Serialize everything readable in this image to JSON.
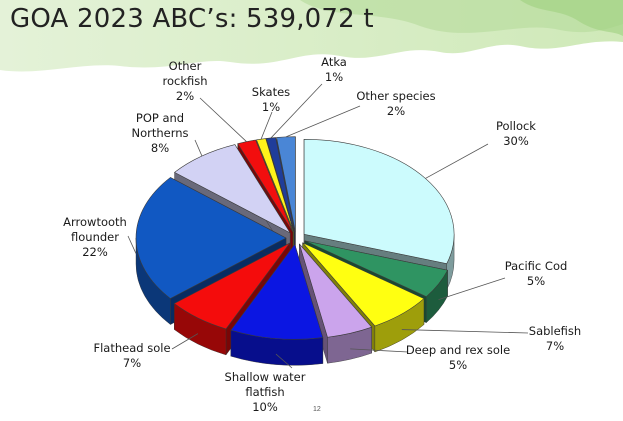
{
  "slide": {
    "title": "GOA 2023 ABC’s: 539,072 t",
    "page_number": "12"
  },
  "chart_data": {
    "type": "pie",
    "title": "GOA 2023 ABC’s: 539,072 t",
    "slices": [
      {
        "label": [
          "Pollock"
        ],
        "pct": "30%",
        "value": 30,
        "color": "#ccfbfd"
      },
      {
        "label": [
          "Pacific Cod"
        ],
        "pct": "5%",
        "value": 5,
        "color": "#2f9462"
      },
      {
        "label": [
          "Sablefish"
        ],
        "pct": "7%",
        "value": 7,
        "color": "#ffff11"
      },
      {
        "label": [
          "Deep and rex sole"
        ],
        "pct": "5%",
        "value": 5,
        "color": "#cba4ec"
      },
      {
        "label": [
          "Shallow water",
          "flatfish"
        ],
        "pct": "10%",
        "value": 10,
        "color": "#0b16e2"
      },
      {
        "label": [
          "Flathead sole"
        ],
        "pct": "7%",
        "value": 7,
        "color": "#f40c0c"
      },
      {
        "label": [
          "Arrowtooth",
          "flounder"
        ],
        "pct": "22%",
        "value": 22,
        "color": "#1158c2"
      },
      {
        "label": [
          "POP and",
          "Northerns"
        ],
        "pct": "8%",
        "value": 8,
        "color": "#d2d2f4"
      },
      {
        "label": [
          "Other",
          "rockfish"
        ],
        "pct": "2%",
        "value": 2,
        "color": "#f20e0e"
      },
      {
        "label": [
          "Skates"
        ],
        "pct": "1%",
        "value": 1,
        "color": "#fff31a"
      },
      {
        "label": [
          "Atka"
        ],
        "pct": "1%",
        "value": 1,
        "color": "#1f3d9a"
      },
      {
        "label": [
          "Other species"
        ],
        "pct": "2%",
        "value": 2,
        "color": "#4a86d6",
        "label_color": "#e81010"
      }
    ]
  }
}
